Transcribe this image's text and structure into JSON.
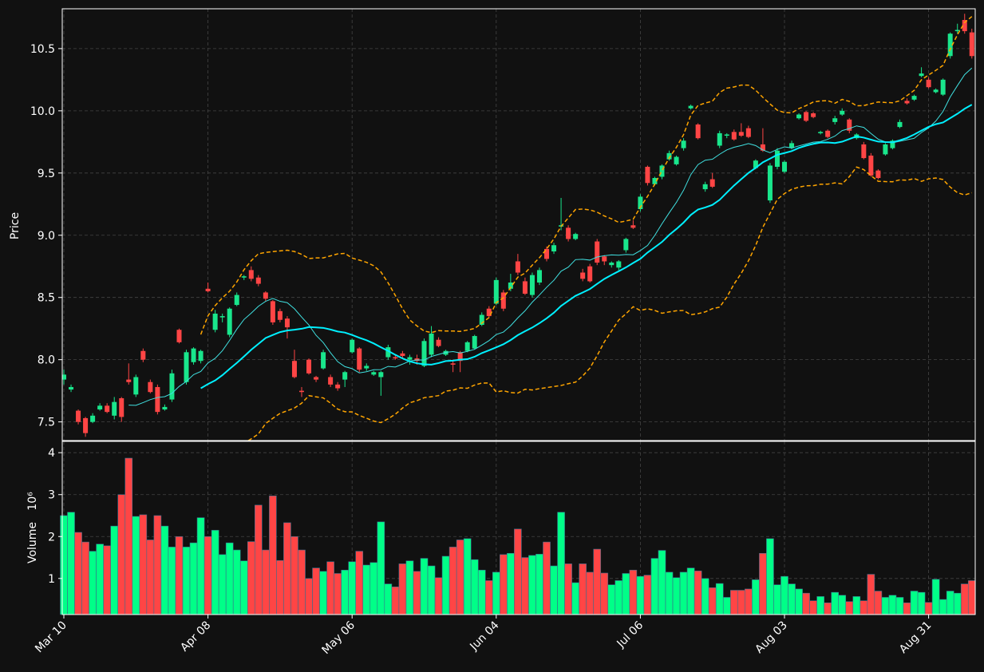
{
  "chart_data": {
    "type": "candlestick",
    "ylabel": "Price",
    "volume_label": "Volume",
    "volume_offset": "10⁶",
    "up_color": "#19e68c",
    "down_color": "#ff4545",
    "volume_up_color": "#00ff88",
    "volume_down_color": "#ff4545",
    "ma_colors": [
      "#40e0e0",
      "#00f0ff"
    ],
    "band_color": "#ffa500",
    "moving_averages": [
      10,
      20
    ],
    "bollinger": {
      "window": 20,
      "std": 2
    },
    "grid": true,
    "categories": [
      "Mar 10",
      null,
      null,
      null,
      null,
      null,
      null,
      null,
      null,
      null,
      null,
      null,
      null,
      null,
      null,
      null,
      null,
      null,
      null,
      null,
      "Apr 08",
      null,
      null,
      null,
      null,
      null,
      null,
      null,
      null,
      null,
      null,
      null,
      null,
      null,
      null,
      null,
      null,
      null,
      null,
      null,
      "May 06",
      null,
      null,
      null,
      null,
      null,
      null,
      null,
      null,
      null,
      null,
      null,
      null,
      null,
      null,
      null,
      null,
      null,
      null,
      null,
      "Jun 04",
      null,
      null,
      null,
      null,
      null,
      null,
      null,
      null,
      null,
      null,
      null,
      null,
      null,
      null,
      null,
      null,
      null,
      null,
      null,
      "Jul 06",
      null,
      null,
      null,
      null,
      null,
      null,
      null,
      null,
      null,
      null,
      null,
      null,
      null,
      null,
      null,
      null,
      null,
      null,
      null,
      "Aug 03",
      null,
      null,
      null,
      null,
      null,
      null,
      null,
      null,
      null,
      null,
      null,
      null,
      null,
      null,
      null,
      null,
      null,
      null,
      null,
      "Aug 31",
      null,
      null,
      null,
      null,
      null,
      null
    ],
    "open": [
      7.84,
      7.76,
      7.59,
      7.53,
      7.5,
      7.6,
      7.63,
      7.55,
      7.69,
      7.84,
      7.72,
      8.07,
      7.82,
      7.78,
      7.6,
      7.68,
      8.24,
      7.82,
      7.98,
      7.99,
      8.57,
      8.24,
      8.34,
      8.2,
      8.44,
      8.66,
      8.72,
      8.66,
      8.54,
      8.47,
      8.39,
      8.33,
      7.99,
      7.75,
      8.0,
      7.86,
      7.93,
      7.86,
      7.8,
      7.84,
      8.06,
      8.09,
      7.93,
      7.88,
      7.86,
      8.02,
      8.02,
      8.05,
      8.0,
      8.01,
      7.95,
      8.04,
      8.16,
      8.04,
      7.97,
      8.06,
      8.07,
      8.09,
      8.28,
      8.41,
      8.45,
      8.54,
      8.57,
      8.79,
      8.63,
      8.52,
      8.62,
      8.89,
      8.87,
      9.07,
      9.06,
      8.97,
      8.7,
      8.75,
      8.95,
      8.83,
      8.76,
      8.74,
      8.88,
      9.08,
      9.21,
      9.55,
      9.41,
      9.47,
      9.61,
      9.57,
      9.7,
      10.02,
      9.89,
      9.37,
      9.45,
      9.72,
      9.8,
      9.83,
      9.83,
      9.86,
      9.54,
      9.73,
      9.28,
      9.55,
      9.51,
      9.7,
      9.94,
      9.99,
      9.98,
      9.82,
      9.84,
      9.91,
      9.97,
      9.93,
      9.78,
      9.73,
      9.64,
      9.52,
      9.65,
      9.7,
      9.87,
      10.08,
      10.09,
      10.28,
      10.25,
      10.15,
      10.13,
      10.44,
      10.64,
      10.73,
      10.63
    ],
    "high": [
      7.92,
      7.8,
      7.6,
      7.54,
      7.57,
      7.65,
      7.65,
      7.7,
      7.7,
      7.97,
      7.88,
      8.09,
      7.84,
      7.8,
      7.64,
      7.92,
      8.25,
      8.08,
      8.1,
      8.08,
      8.62,
      8.4,
      8.37,
      8.42,
      8.54,
      8.68,
      8.75,
      8.68,
      8.55,
      8.48,
      8.41,
      8.35,
      8.08,
      7.78,
      8.01,
      7.87,
      8.08,
      7.88,
      7.82,
      7.91,
      8.17,
      8.1,
      7.97,
      7.91,
      7.91,
      8.12,
      8.04,
      8.07,
      8.04,
      8.04,
      8.17,
      8.27,
      8.18,
      8.08,
      8.0,
      8.07,
      8.15,
      8.2,
      8.38,
      8.43,
      8.66,
      8.56,
      8.69,
      8.85,
      8.66,
      8.7,
      8.74,
      8.91,
      8.94,
      9.3,
      9.08,
      9.02,
      8.73,
      8.77,
      8.97,
      8.84,
      8.79,
      8.8,
      8.98,
      9.12,
      9.33,
      9.56,
      9.47,
      9.57,
      9.68,
      9.64,
      9.78,
      10.05,
      9.9,
      9.43,
      9.5,
      9.84,
      9.82,
      9.85,
      9.9,
      9.88,
      9.61,
      9.86,
      9.58,
      9.7,
      9.6,
      9.76,
      9.98,
      10.0,
      9.99,
      9.84,
      9.85,
      9.96,
      10.02,
      9.94,
      9.82,
      9.75,
      9.66,
      9.53,
      9.74,
      9.77,
      9.93,
      10.1,
      10.13,
      10.35,
      10.27,
      10.18,
      10.26,
      10.63,
      10.7,
      10.78,
      10.66
    ],
    "low": [
      7.8,
      7.74,
      7.48,
      7.38,
      7.49,
      7.59,
      7.57,
      7.52,
      7.5,
      7.8,
      7.7,
      7.98,
      7.73,
      7.56,
      7.59,
      7.66,
      8.13,
      7.8,
      7.96,
      7.97,
      8.54,
      8.22,
      8.3,
      8.18,
      8.43,
      8.64,
      8.63,
      8.59,
      8.47,
      8.28,
      8.3,
      8.17,
      7.85,
      7.7,
      7.88,
      7.82,
      7.92,
      7.78,
      7.75,
      7.78,
      8.05,
      7.9,
      7.91,
      7.87,
      7.71,
      8.0,
      8.0,
      8.01,
      7.96,
      7.96,
      7.94,
      8.02,
      8.1,
      8.03,
      7.9,
      7.9,
      8.06,
      8.08,
      8.27,
      8.34,
      8.44,
      8.39,
      8.55,
      8.68,
      8.52,
      8.5,
      8.6,
      8.79,
      8.85,
      9.04,
      8.95,
      8.96,
      8.63,
      8.62,
      8.76,
      8.76,
      8.74,
      8.72,
      8.86,
      9.05,
      9.19,
      9.4,
      9.4,
      9.45,
      9.6,
      9.56,
      9.68,
      10.01,
      9.77,
      9.35,
      9.38,
      9.7,
      9.78,
      9.76,
      9.79,
      9.78,
      9.53,
      9.67,
      9.26,
      9.53,
      9.5,
      9.69,
      9.93,
      9.91,
      9.94,
      9.81,
      9.78,
      9.89,
      9.96,
      9.82,
      9.77,
      9.61,
      9.47,
      9.45,
      9.64,
      9.69,
      9.86,
      10.05,
      10.08,
      10.27,
      10.18,
      10.14,
      10.12,
      10.42,
      10.62,
      10.62,
      10.42
    ],
    "close": [
      7.88,
      7.78,
      7.5,
      7.41,
      7.55,
      7.63,
      7.58,
      7.66,
      7.54,
      7.82,
      7.86,
      8.0,
      7.74,
      7.58,
      7.62,
      7.89,
      8.14,
      8.06,
      8.09,
      8.07,
      8.55,
      8.37,
      8.35,
      8.41,
      8.52,
      8.67,
      8.65,
      8.61,
      8.49,
      8.3,
      8.32,
      8.26,
      7.86,
      7.74,
      7.89,
      7.84,
      8.06,
      7.8,
      7.77,
      7.9,
      8.16,
      7.92,
      7.95,
      7.9,
      7.9,
      8.1,
      8.01,
      8.03,
      8.02,
      7.99,
      8.15,
      8.21,
      8.11,
      8.07,
      7.96,
      7.99,
      8.14,
      8.19,
      8.36,
      8.35,
      8.64,
      8.41,
      8.62,
      8.7,
      8.53,
      8.68,
      8.72,
      8.81,
      8.92,
      9.08,
      8.97,
      9.01,
      8.65,
      8.63,
      8.78,
      8.79,
      8.78,
      8.79,
      8.97,
      9.06,
      9.31,
      9.42,
      9.46,
      9.56,
      9.66,
      9.63,
      9.76,
      10.04,
      9.78,
      9.41,
      9.39,
      9.82,
      9.81,
      9.77,
      9.8,
      9.79,
      9.6,
      9.68,
      9.56,
      9.68,
      9.59,
      9.74,
      9.97,
      9.92,
      9.95,
      9.83,
      9.79,
      9.94,
      10.0,
      9.84,
      9.81,
      9.62,
      9.48,
      9.46,
      9.73,
      9.76,
      9.91,
      10.06,
      10.12,
      10.3,
      10.19,
      10.17,
      10.25,
      10.62,
      10.65,
      10.64,
      10.44
    ],
    "volume": [
      2.5,
      2.58,
      2.1,
      1.87,
      1.65,
      1.82,
      1.78,
      2.25,
      3.0,
      3.87,
      2.48,
      2.52,
      1.92,
      2.5,
      2.25,
      1.75,
      2.0,
      1.75,
      1.85,
      2.45,
      2.0,
      2.15,
      1.57,
      1.85,
      1.68,
      1.42,
      1.88,
      2.75,
      1.68,
      2.97,
      1.43,
      2.33,
      2.0,
      1.68,
      1.0,
      1.25,
      1.17,
      1.4,
      1.12,
      1.2,
      1.4,
      1.65,
      1.32,
      1.38,
      2.35,
      0.87,
      0.8,
      1.35,
      1.42,
      1.17,
      1.48,
      1.3,
      1.02,
      1.53,
      1.75,
      1.92,
      1.95,
      1.45,
      1.2,
      0.95,
      1.15,
      1.57,
      1.6,
      2.18,
      1.5,
      1.55,
      1.58,
      1.87,
      1.3,
      2.58,
      1.35,
      0.9,
      1.35,
      1.15,
      1.7,
      1.13,
      0.85,
      0.95,
      1.12,
      1.2,
      1.05,
      1.08,
      1.48,
      1.67,
      1.15,
      1.02,
      1.15,
      1.25,
      1.18,
      1.0,
      0.78,
      0.88,
      0.55,
      0.72,
      0.72,
      0.75,
      0.97,
      1.6,
      1.95,
      0.85,
      1.05,
      0.87,
      0.75,
      0.65,
      0.47,
      0.57,
      0.42,
      0.67,
      0.6,
      0.45,
      0.57,
      0.47,
      1.1,
      0.7,
      0.55,
      0.6,
      0.55,
      0.42,
      0.7,
      0.67,
      0.43,
      0.98,
      0.5,
      0.7,
      0.65,
      0.87,
      0.95
    ],
    "ylim": [
      7.35,
      10.82
    ],
    "yticks": [
      7.5,
      {
        "value": 8,
        "label": "8.0"
      },
      8.5,
      {
        "value": 9,
        "label": "9.0"
      },
      9.5,
      {
        "value": 10,
        "label": "10.0"
      },
      10.5
    ],
    "volume_ylim": [
      0.14,
      4.27
    ],
    "volume_yticks": [
      1,
      2,
      3,
      4
    ]
  }
}
